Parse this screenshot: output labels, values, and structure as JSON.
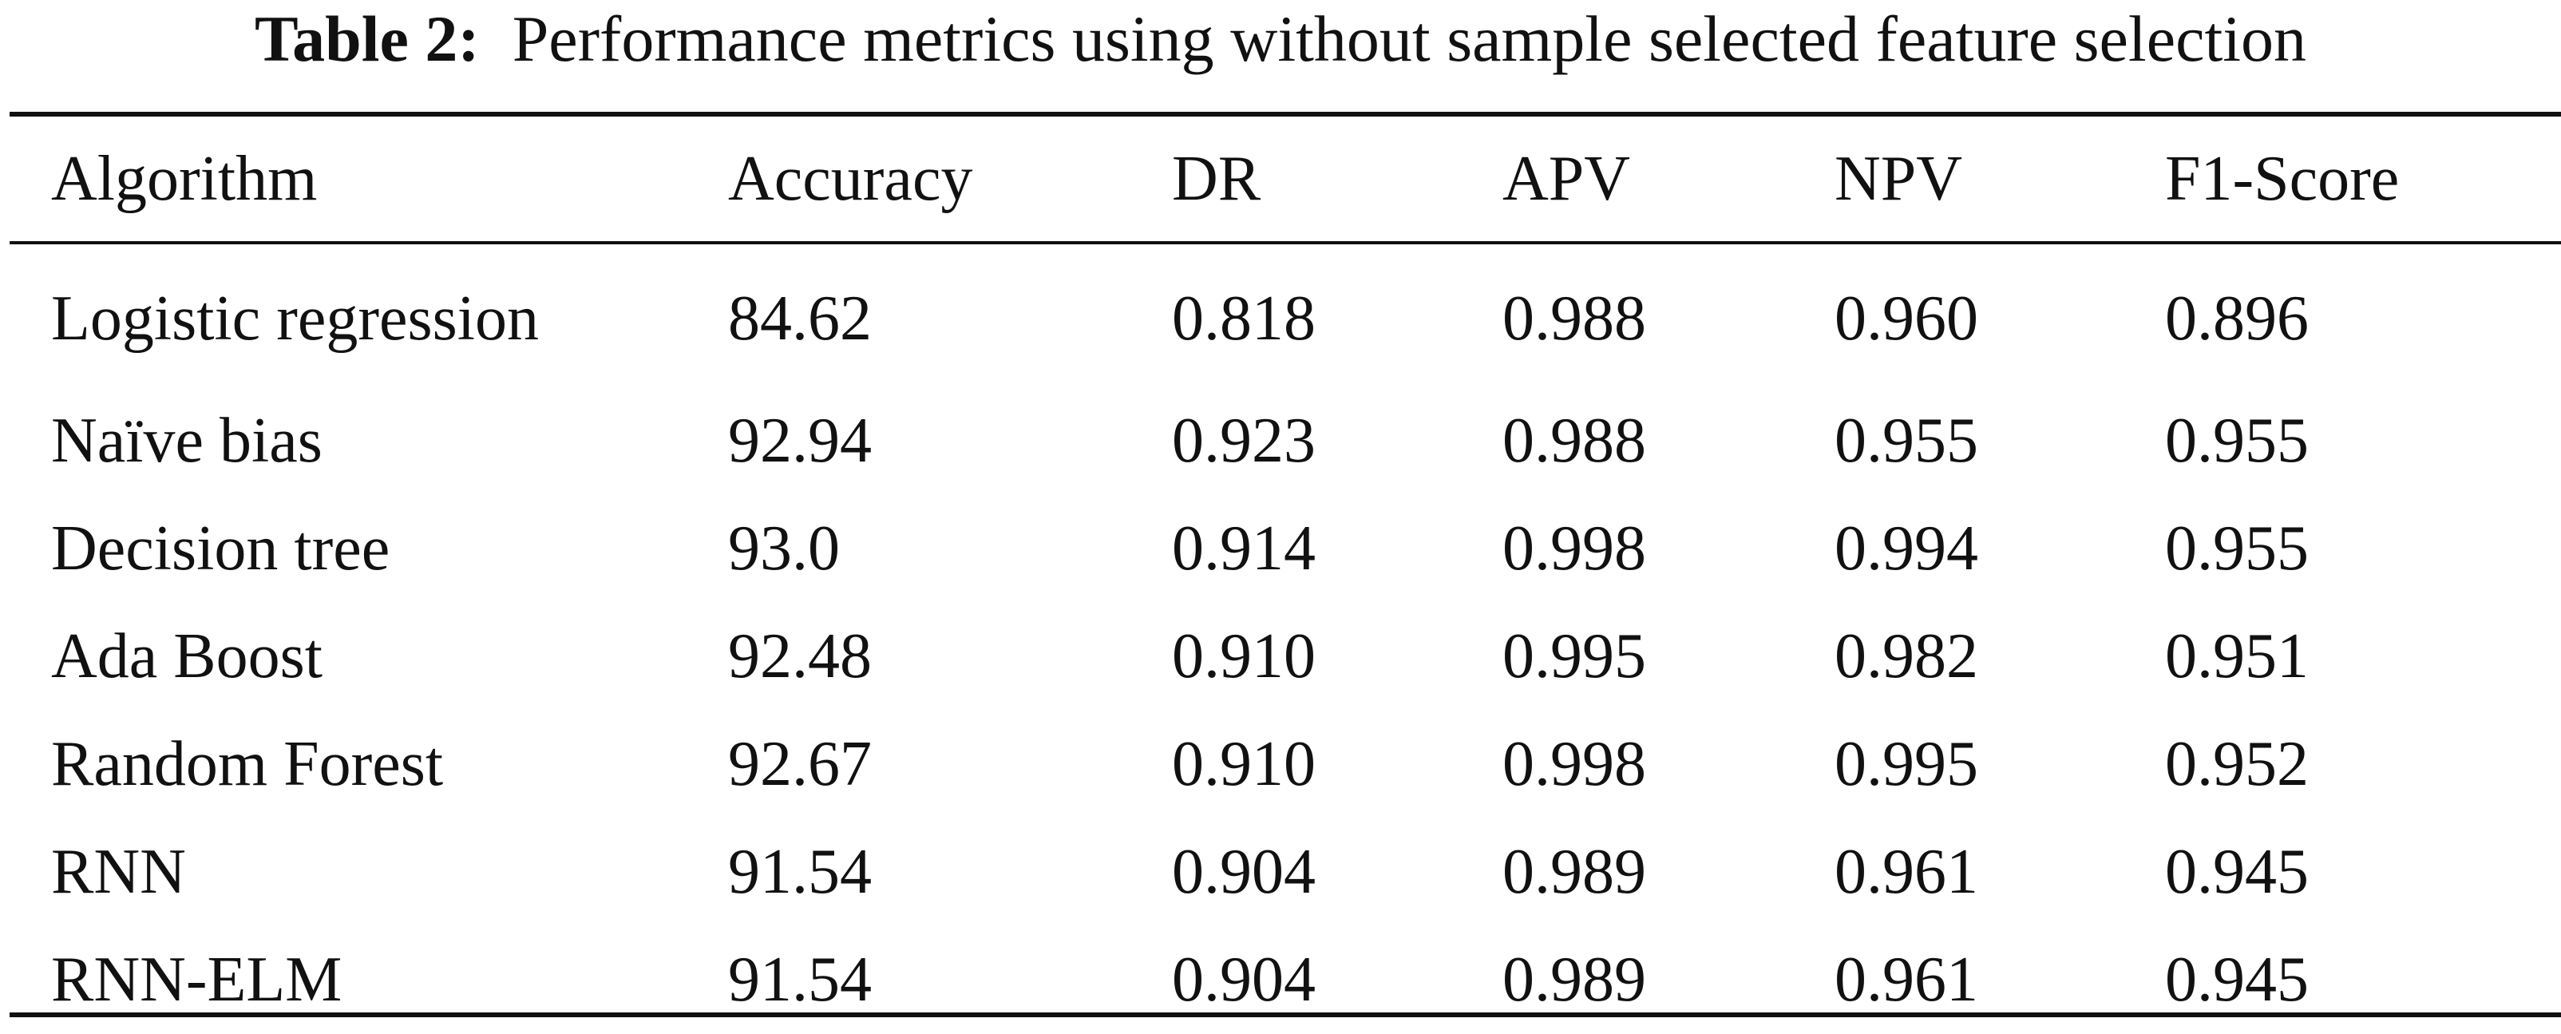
{
  "caption": {
    "label": "Table 2:",
    "text": "Performance metrics using without sample selected feature selection"
  },
  "table": {
    "headers": [
      "Algorithm",
      "Accuracy",
      "DR",
      "APV",
      "NPV",
      "F1-Score"
    ],
    "rows": [
      [
        "Logistic regression",
        "84.62",
        "0.818",
        "0.988",
        "0.960",
        "0.896"
      ],
      [
        "Naïve bias",
        "92.94",
        "0.923",
        "0.988",
        "0.955",
        "0.955"
      ],
      [
        "Decision tree",
        "93.0",
        "0.914",
        "0.998",
        "0.994",
        "0.955"
      ],
      [
        "Ada Boost",
        "92.48",
        "0.910",
        "0.995",
        "0.982",
        "0.951"
      ],
      [
        "Random Forest",
        "92.67",
        "0.910",
        "0.998",
        "0.995",
        "0.952"
      ],
      [
        "RNN",
        "91.54",
        "0.904",
        "0.989",
        "0.961",
        "0.945"
      ],
      [
        "RNN-ELM",
        "91.54",
        "0.904",
        "0.989",
        "0.961",
        "0.945"
      ]
    ]
  }
}
